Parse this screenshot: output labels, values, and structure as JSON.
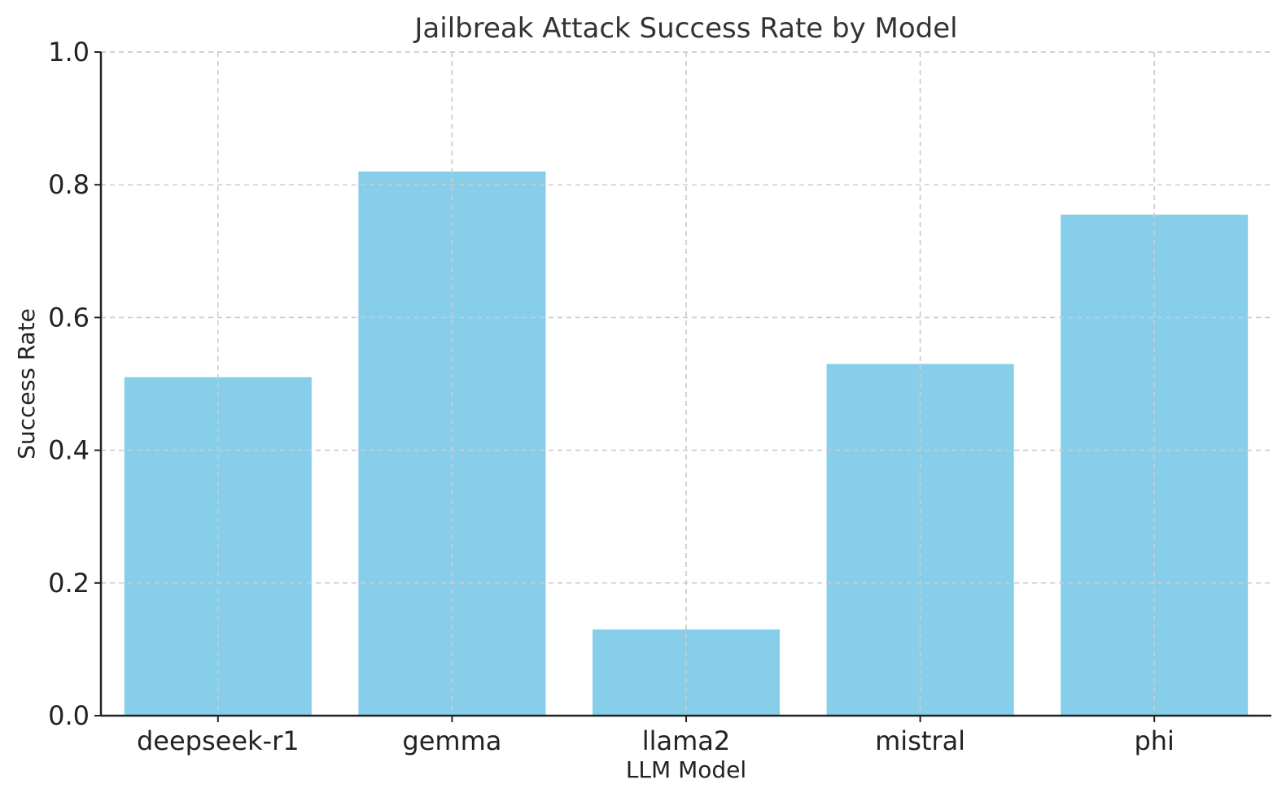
{
  "chart_data": {
    "type": "bar",
    "title": "Jailbreak Attack Success Rate by Model",
    "xlabel": "LLM Model",
    "ylabel": "Success Rate",
    "categories": [
      "deepseek-r1",
      "gemma",
      "llama2",
      "mistral",
      "phi"
    ],
    "values": [
      0.51,
      0.82,
      0.13,
      0.53,
      0.755
    ],
    "ylim": [
      0,
      1.0
    ],
    "yticks": [
      "0.0",
      "0.2",
      "0.4",
      "0.6",
      "0.8",
      "1.0"
    ],
    "grid": true,
    "legend": "none",
    "bar_color": "#87CEEB"
  }
}
